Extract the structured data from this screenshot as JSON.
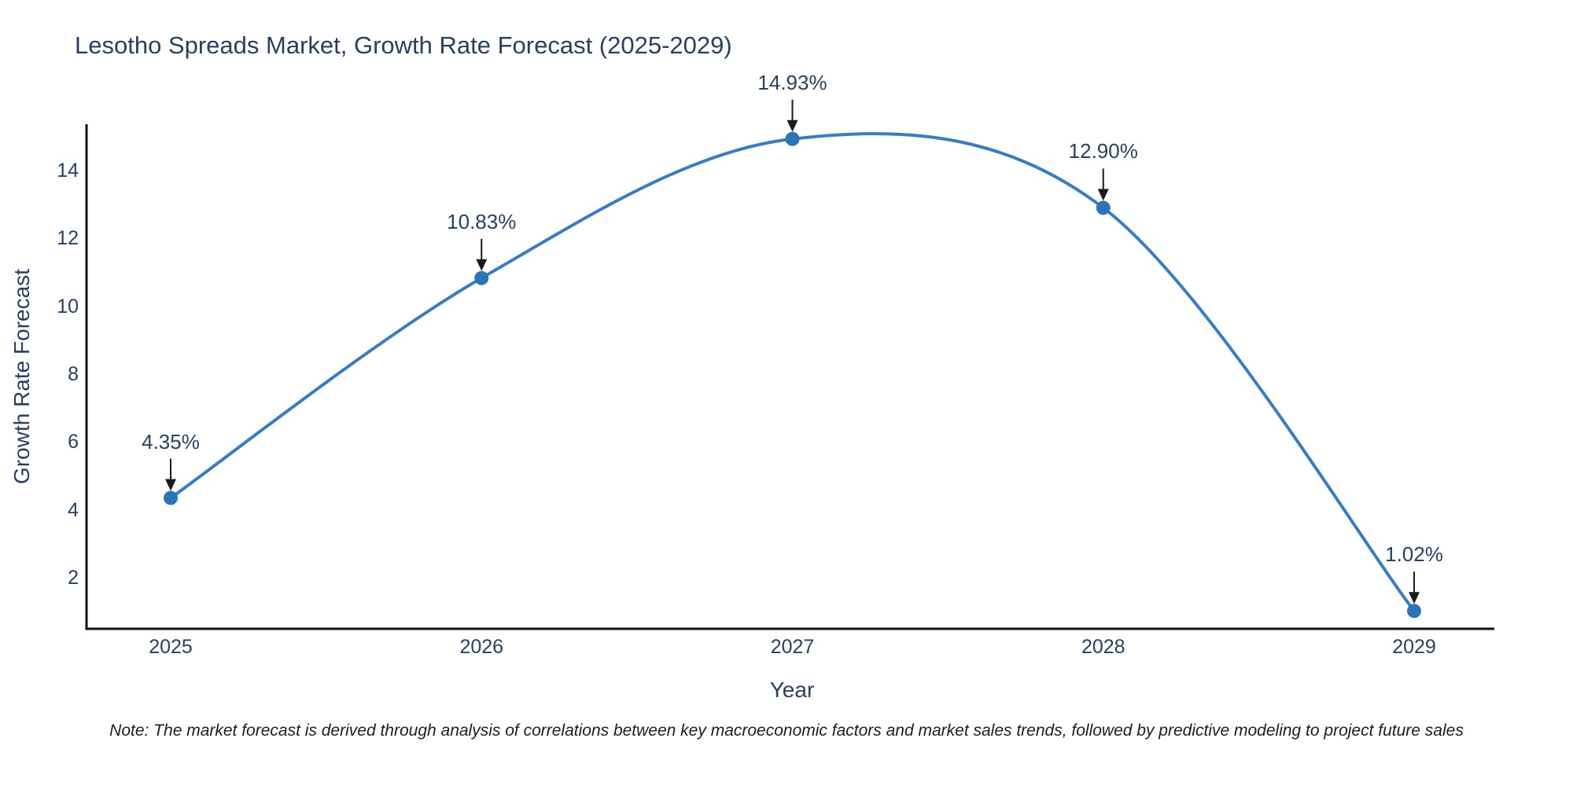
{
  "title": "Lesotho Spreads Market, Growth Rate Forecast (2025-2029)",
  "note": "Note: The market forecast is derived through analysis of correlations between key macroeconomic factors and market sales trends, followed by predictive modeling to project future sales",
  "chart_data": {
    "type": "line",
    "title": "Lesotho Spreads Market, Growth Rate Forecast (2025-2029)",
    "xlabel": "Year",
    "ylabel": "Growth Rate Forecast",
    "x": [
      2025,
      2026,
      2027,
      2028,
      2029
    ],
    "series": [
      {
        "name": "Growth Rate Forecast",
        "values": [
          4.35,
          10.83,
          14.93,
          12.9,
          1.02
        ]
      }
    ],
    "point_labels": [
      "4.35%",
      "10.83%",
      "14.93%",
      "12.90%",
      "1.02%"
    ],
    "xticks": [
      "2025",
      "2026",
      "2027",
      "2028",
      "2029"
    ],
    "yticks": [
      2,
      4,
      6,
      8,
      10,
      12,
      14
    ],
    "ylim": [
      0.49,
      15.36
    ],
    "grid": false,
    "legend": "none",
    "curve": "spline",
    "colors": {
      "line": "#3a7cbe",
      "marker": "#2e74b5",
      "axis": "#111111",
      "arrow": "#1a1a1a",
      "text": "#2a3f5f"
    }
  }
}
